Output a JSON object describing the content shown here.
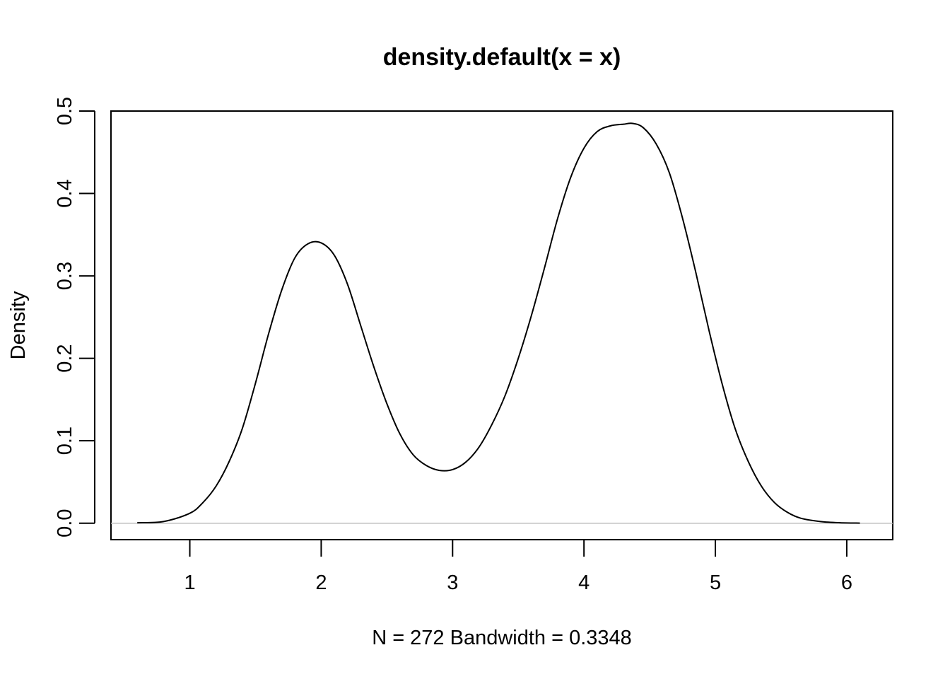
{
  "chart_data": {
    "type": "line",
    "title": "density.default(x = x)",
    "xlabel": "N = 272   Bandwidth = 0.3348",
    "ylabel": "Density",
    "xlim": [
      0.4,
      6.35
    ],
    "ylim": [
      -0.02,
      0.5
    ],
    "x_ticks": [
      "1",
      "2",
      "3",
      "4",
      "5",
      "6"
    ],
    "y_ticks": [
      "0.0",
      "0.1",
      "0.2",
      "0.3",
      "0.4",
      "0.5"
    ],
    "zero_line": true,
    "grid": false,
    "series": [
      {
        "color": "#000000",
        "x": [
          0.6,
          0.8,
          1.0,
          1.1,
          1.2,
          1.3,
          1.4,
          1.5,
          1.6,
          1.7,
          1.8,
          1.9,
          2.0,
          2.1,
          2.2,
          2.3,
          2.4,
          2.5,
          2.6,
          2.7,
          2.8,
          2.9,
          3.0,
          3.1,
          3.2,
          3.3,
          3.4,
          3.5,
          3.6,
          3.7,
          3.8,
          3.9,
          4.0,
          4.1,
          4.2,
          4.3,
          4.37,
          4.45,
          4.55,
          4.65,
          4.75,
          4.85,
          4.95,
          5.05,
          5.15,
          5.25,
          5.35,
          5.45,
          5.55,
          5.65,
          5.8,
          5.95,
          6.1
        ],
        "y": [
          0.0005,
          0.002,
          0.012,
          0.025,
          0.045,
          0.075,
          0.115,
          0.17,
          0.23,
          0.283,
          0.322,
          0.339,
          0.34,
          0.325,
          0.29,
          0.24,
          0.19,
          0.145,
          0.108,
          0.083,
          0.07,
          0.064,
          0.065,
          0.074,
          0.092,
          0.12,
          0.155,
          0.2,
          0.252,
          0.31,
          0.37,
          0.42,
          0.455,
          0.475,
          0.482,
          0.484,
          0.485,
          0.48,
          0.46,
          0.425,
          0.37,
          0.305,
          0.235,
          0.17,
          0.115,
          0.075,
          0.045,
          0.025,
          0.013,
          0.006,
          0.002,
          0.0005,
          0.0001
        ]
      }
    ]
  }
}
